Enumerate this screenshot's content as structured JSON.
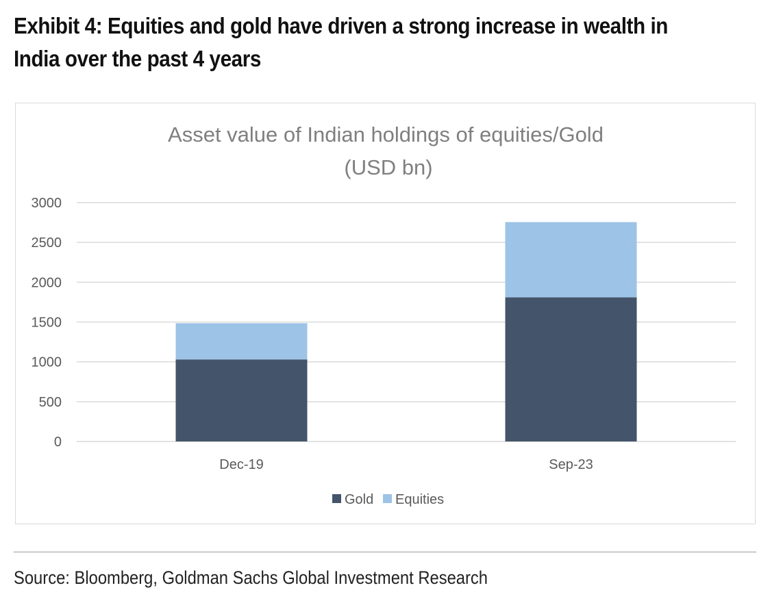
{
  "header": {
    "title": "Exhibit 4: Equities and gold have driven a strong increase in wealth in India over the past 4 years"
  },
  "footer": {
    "source": "Source: Bloomberg, Goldman Sachs Global Investment Research"
  },
  "chart_data": {
    "type": "bar",
    "stacked": true,
    "title": "Asset value of Indian holdings of equities/Gold",
    "subtitle": "(USD bn)",
    "xlabel": "",
    "ylabel": "",
    "categories": [
      "Dec-19",
      "Sep-23"
    ],
    "series": [
      {
        "name": "Gold",
        "values": [
          1030,
          1810
        ],
        "color": "#44546a"
      },
      {
        "name": "Equities",
        "values": [
          455,
          945
        ],
        "color": "#9dc3e6"
      }
    ],
    "ylim": [
      0,
      3000
    ],
    "yticks": [
      0,
      500,
      1000,
      1500,
      2000,
      2500,
      3000
    ],
    "grid": true,
    "legend": "bottom-center",
    "colors": {
      "grid": "#d9d9d9",
      "axis_text": "#595959",
      "title_text": "#7f7f7f"
    }
  }
}
